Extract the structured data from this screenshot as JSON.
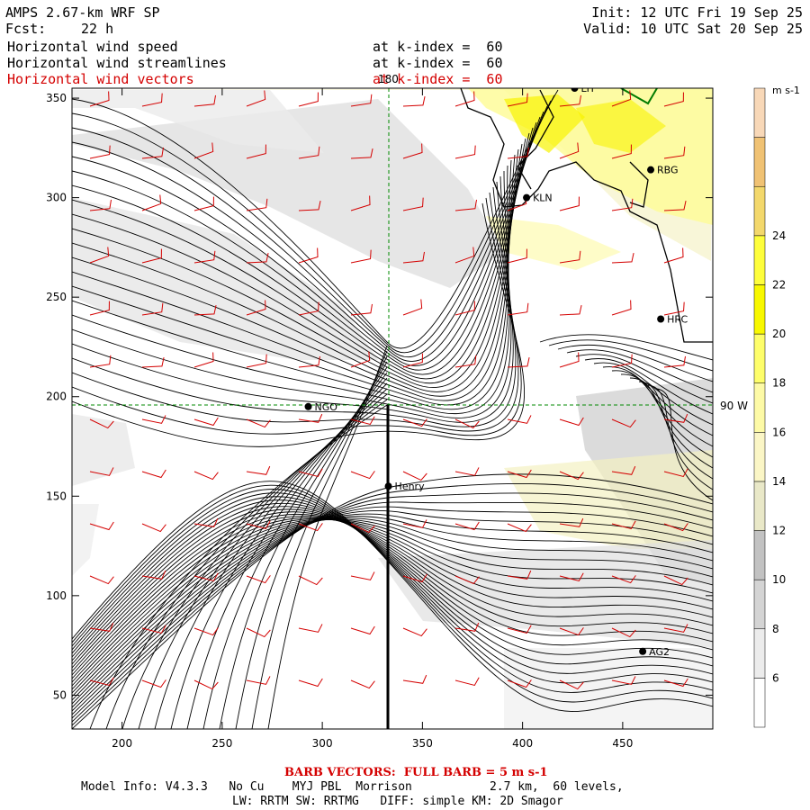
{
  "header": {
    "model": "AMPS 2.67-km WRF SP",
    "fcst_label": "Fcst:",
    "fcst_value": "22 h",
    "init": "Init: 12 UTC Fri 19 Sep 25",
    "valid": "Valid: 10 UTC Sat 20 Sep 25"
  },
  "fields": [
    {
      "name": "Horizontal wind speed",
      "level": "at k-index =  60",
      "color": "#000000"
    },
    {
      "name": "Horizontal wind streamlines",
      "level": "at k-index =  60",
      "color": "#000000"
    },
    {
      "name": "Horizontal wind vectors",
      "level": "at k-index =  60",
      "color": "#d40000"
    }
  ],
  "axes": {
    "x_ticks": [
      200,
      250,
      300,
      350,
      400,
      450
    ],
    "y_ticks": [
      50,
      100,
      150,
      200,
      250,
      300,
      350
    ],
    "xlim": [
      175,
      495
    ],
    "ylim": [
      33,
      355
    ],
    "meridian_label": "180",
    "lon90_label": "90 W"
  },
  "stations": [
    {
      "id": "NGO",
      "x": 293,
      "y": 195
    },
    {
      "id": "KLN",
      "x": 402,
      "y": 300
    },
    {
      "id": "RBG",
      "x": 464,
      "y": 314
    },
    {
      "id": "HRC",
      "x": 469,
      "y": 239
    },
    {
      "id": "AG2",
      "x": 460,
      "y": 72
    },
    {
      "id": "Henry",
      "x": 333,
      "y": 155
    },
    {
      "id": "LIT",
      "x": 426,
      "y": 355
    }
  ],
  "colorbar": {
    "unit": "m s-1",
    "labels": [
      6,
      8,
      10,
      12,
      14,
      16,
      18,
      20,
      22,
      24
    ],
    "colors": [
      "#ffffff",
      "#ececec",
      "#d4d4d4",
      "#c2c2c2",
      "#e9e8c8",
      "#fbf6c6",
      "#fdfaa6",
      "#fefe6a",
      "#f8f800",
      "#fefe3c",
      "#f3d86c",
      "#f0c274",
      "#f8d8b8"
    ]
  },
  "footer": {
    "barb": "BARB VECTORS:  FULL BARB = 5 m s-1",
    "model_info": "Model Info: V4.3.3   No Cu    MYJ PBL  Morrison           2.7 km,  60 levels,",
    "physics": "LW: RRTM SW: RRTMG   DIFF: simple KM: 2D Smagor"
  }
}
